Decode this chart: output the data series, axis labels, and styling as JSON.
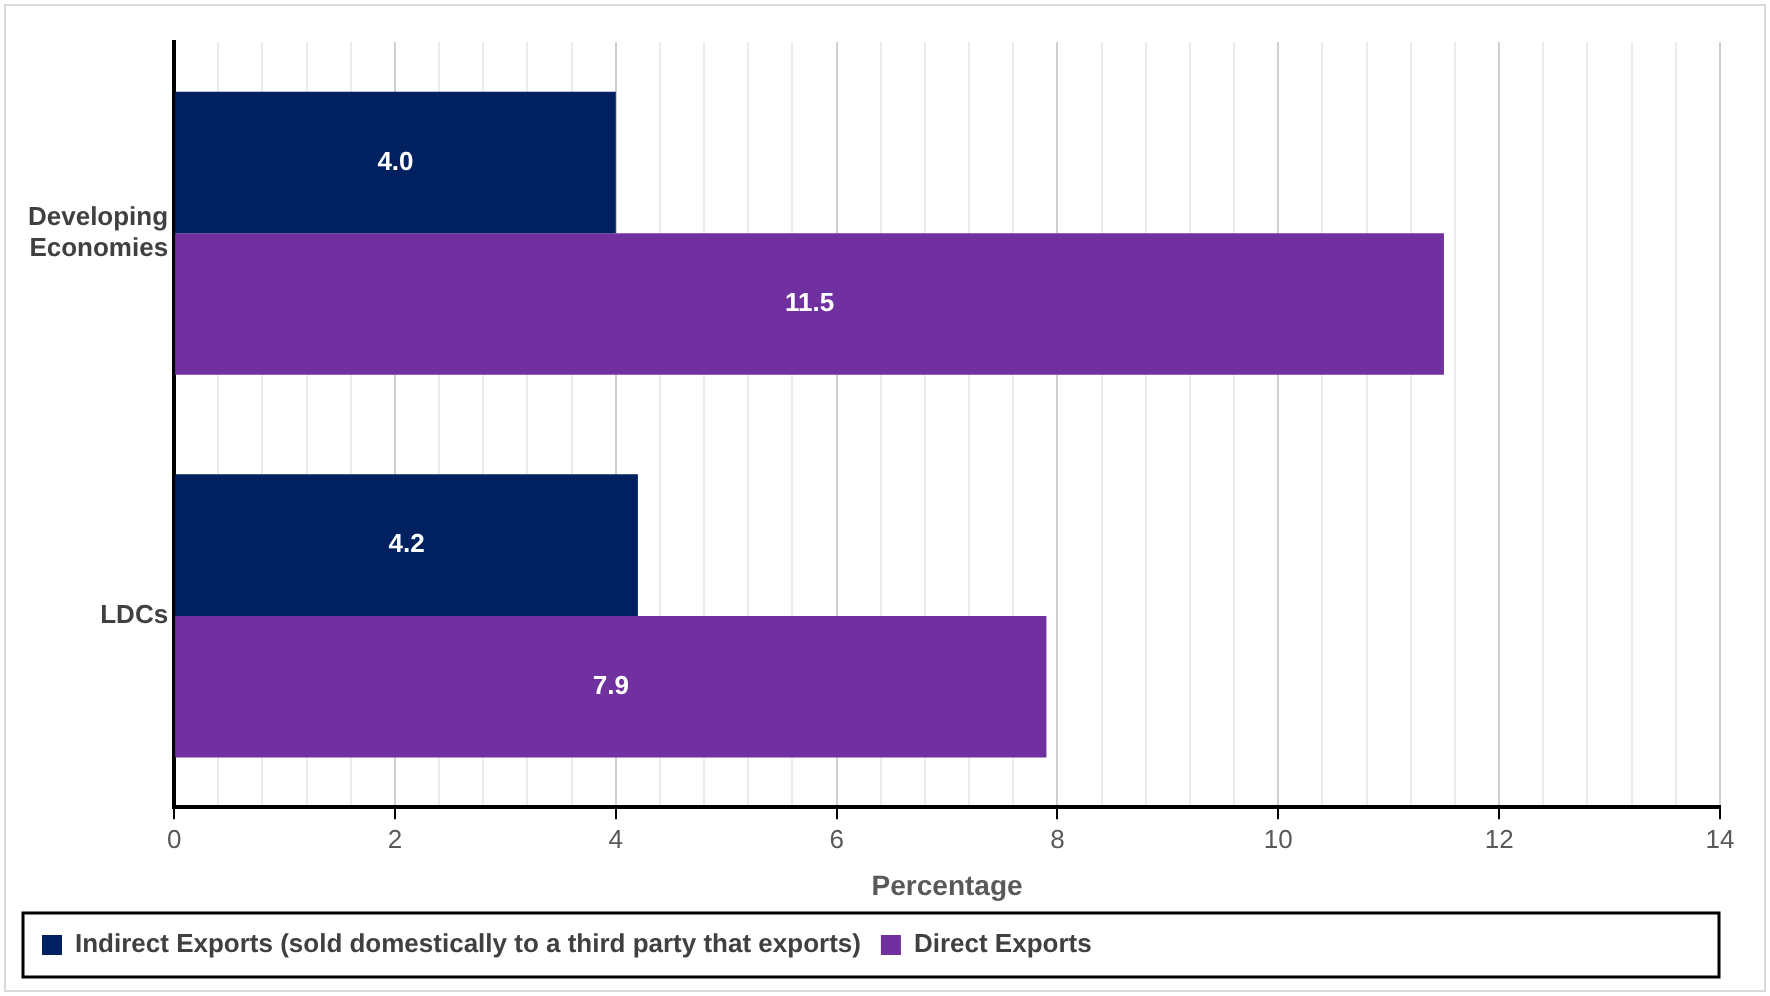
{
  "chart_data": {
    "type": "bar",
    "orientation": "horizontal",
    "xlabel": "Percentage",
    "categories": [
      "Developing\nEconomies",
      "LDCs"
    ],
    "series": [
      {
        "name": "Indirect Exports (sold domestically to a third party that exports)",
        "color": "#002060",
        "values": [
          4.0,
          4.2
        ],
        "value_labels": [
          "4.0",
          "4.2"
        ]
      },
      {
        "name": "Direct Exports",
        "color": "#7030a0",
        "values": [
          11.5,
          7.9
        ],
        "value_labels": [
          "11.5",
          "7.9"
        ]
      }
    ],
    "xlim": [
      0,
      14
    ],
    "xticks": [
      0,
      {
        "value": 0.4,
        "label": null
      },
      {
        "value": 0.8,
        "label": null
      },
      {
        "value": 1.2,
        "label": null
      },
      {
        "value": 1.6,
        "label": null
      },
      2,
      {
        "value": 2.4,
        "label": null
      },
      {
        "value": 2.8,
        "label": null
      },
      {
        "value": 3.2,
        "label": null
      },
      {
        "value": 3.6,
        "label": null
      },
      4,
      {
        "value": 4.4,
        "label": null
      },
      {
        "value": 4.8,
        "label": null
      },
      {
        "value": 5.2,
        "label": null
      },
      {
        "value": 5.6,
        "label": null
      },
      6,
      {
        "value": 6.4,
        "label": null
      },
      {
        "value": 6.8,
        "label": null
      },
      {
        "value": 7.2,
        "label": null
      },
      {
        "value": 7.6,
        "label": null
      },
      8,
      {
        "value": 8.4,
        "label": null
      },
      {
        "value": 8.8,
        "label": null
      },
      {
        "value": 9.2,
        "label": null
      },
      {
        "value": 9.6,
        "label": null
      },
      10,
      {
        "value": 10.4,
        "label": null
      },
      {
        "value": 10.8,
        "label": null
      },
      {
        "value": 11.2,
        "label": null
      },
      {
        "value": 11.6,
        "label": null
      },
      12,
      {
        "value": 12.4,
        "label": null
      },
      {
        "value": 12.8,
        "label": null
      },
      {
        "value": 13.2,
        "label": null
      },
      {
        "value": 13.6,
        "label": null
      },
      14
    ],
    "grid": "x",
    "legend": "bottom"
  }
}
